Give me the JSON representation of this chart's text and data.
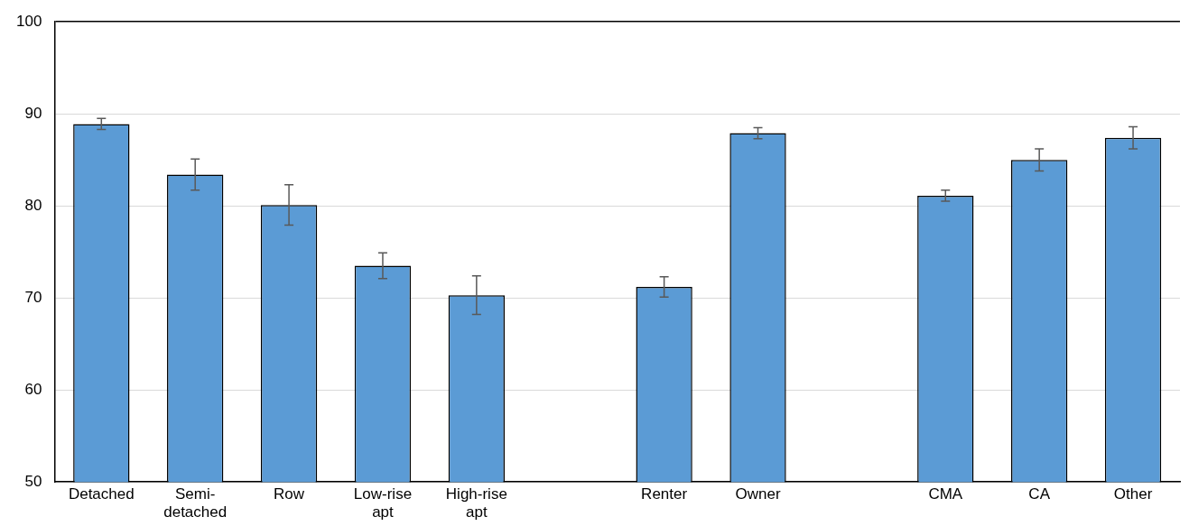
{
  "chart_data": {
    "type": "bar",
    "categories": [
      "Detached",
      "Semi-detached",
      "Row",
      "Low-rise apt",
      "High-rise apt",
      null,
      "Renter",
      "Owner",
      null,
      "CMA",
      "CA",
      "Other"
    ],
    "values": [
      88.9,
      83.4,
      80.1,
      73.5,
      70.3,
      null,
      71.2,
      87.9,
      null,
      81.1,
      85.0,
      87.4
    ],
    "errors": [
      0.6,
      1.7,
      2.2,
      1.4,
      2.1,
      null,
      1.1,
      0.6,
      null,
      0.6,
      1.2,
      1.2
    ],
    "color": "#5b9bd5",
    "ylim": [
      50,
      100
    ],
    "yticks": [
      50,
      60,
      70,
      80,
      90,
      100
    ],
    "grid": "y",
    "legend": false
  }
}
